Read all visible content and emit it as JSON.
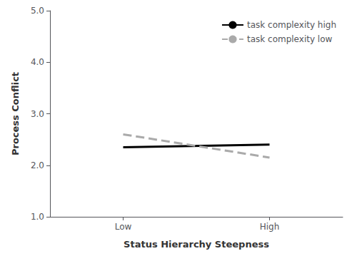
{
  "chart_data": {
    "type": "line",
    "xlabel": "Status Hierarchy Steepness",
    "ylabel": "Process Conflict",
    "categories": [
      "Low",
      "High"
    ],
    "series": [
      {
        "name": "task complexity high",
        "color": "#000000",
        "line_style": "solid",
        "values": [
          2.35,
          2.4
        ]
      },
      {
        "name": "task complexity low",
        "color": "#aaaaaa",
        "line_style": "dashed",
        "values": [
          2.6,
          2.15
        ]
      }
    ],
    "ylim": [
      1.0,
      5.0
    ],
    "yticks": [
      {
        "value": 1.0,
        "label": "1.0"
      },
      {
        "value": 2.0,
        "label": "2.0"
      },
      {
        "value": 3.0,
        "label": "3.0"
      },
      {
        "value": 4.0,
        "label": "4.0"
      },
      {
        "value": 5.0,
        "label": "5.0"
      }
    ],
    "grid": false,
    "legend": "upper right"
  }
}
